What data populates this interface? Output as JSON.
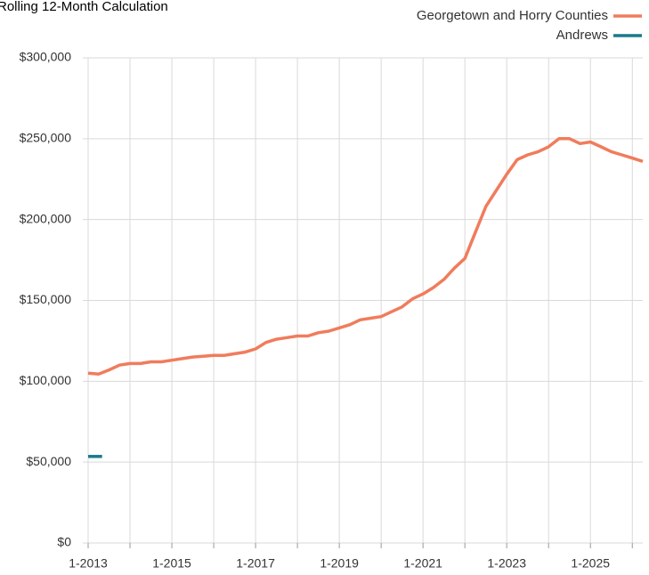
{
  "chart_data": {
    "type": "line",
    "title": "Rolling 12-Month Calculation",
    "xlim": [
      2013,
      2026.25
    ],
    "xticks": [
      {
        "value": 2013,
        "label": "1-2013"
      },
      {
        "value": 2014,
        "label": null
      },
      {
        "value": 2015,
        "label": "1-2015"
      },
      {
        "value": 2016,
        "label": null
      },
      {
        "value": 2017,
        "label": "1-2017"
      },
      {
        "value": 2018,
        "label": null
      },
      {
        "value": 2019,
        "label": "1-2019"
      },
      {
        "value": 2020,
        "label": null
      },
      {
        "value": 2021,
        "label": "1-2021"
      },
      {
        "value": 2022,
        "label": null
      },
      {
        "value": 2023,
        "label": "1-2023"
      },
      {
        "value": 2024,
        "label": null
      },
      {
        "value": 2025,
        "label": "1-2025"
      },
      {
        "value": 2026,
        "label": null
      }
    ],
    "ylim": [
      0,
      300000
    ],
    "yticks": [
      {
        "value": 0,
        "label": "$0"
      },
      {
        "value": 50000,
        "label": "$50,000"
      },
      {
        "value": 100000,
        "label": "$100,000"
      },
      {
        "value": 150000,
        "label": "$150,000"
      },
      {
        "value": 200000,
        "label": "$200,000"
      },
      {
        "value": 250000,
        "label": "$250,000"
      },
      {
        "value": 300000,
        "label": "$300,000"
      }
    ],
    "grid": true,
    "legend": "top-right",
    "series": [
      {
        "name": "Georgetown and Horry Counties",
        "color": "#f07c5c",
        "x": [
          2013,
          2013.25,
          2013.5,
          2013.75,
          2014,
          2014.25,
          2014.5,
          2014.75,
          2015,
          2015.25,
          2015.5,
          2015.75,
          2016,
          2016.25,
          2016.5,
          2016.75,
          2017,
          2017.25,
          2017.5,
          2017.75,
          2018,
          2018.25,
          2018.5,
          2018.75,
          2019,
          2019.25,
          2019.5,
          2019.75,
          2020,
          2020.25,
          2020.5,
          2020.75,
          2021,
          2021.25,
          2021.5,
          2021.75,
          2022,
          2022.25,
          2022.5,
          2022.75,
          2023,
          2023.25,
          2023.5,
          2023.75,
          2024,
          2024.25,
          2024.5,
          2024.75,
          2025,
          2025.25,
          2025.5,
          2025.75,
          2026,
          2026.25
        ],
        "values": [
          105000,
          104500,
          107000,
          110000,
          111000,
          111000,
          112000,
          112000,
          113000,
          114000,
          115000,
          115500,
          116000,
          116000,
          117000,
          118000,
          120000,
          124000,
          126000,
          127000,
          128000,
          128000,
          130000,
          131000,
          133000,
          135000,
          138000,
          139000,
          140000,
          143000,
          146000,
          151000,
          154000,
          158000,
          163000,
          170000,
          176000,
          192000,
          208000,
          218000,
          228000,
          237000,
          240000,
          242000,
          245000,
          250000,
          250000,
          247000,
          248000,
          245000,
          242000,
          240000,
          238000,
          236000
        ]
      },
      {
        "name": "Andrews",
        "color": "#1a7a8c",
        "x": [
          2013,
          2013.333
        ],
        "values": [
          53500,
          53500
        ]
      }
    ]
  }
}
